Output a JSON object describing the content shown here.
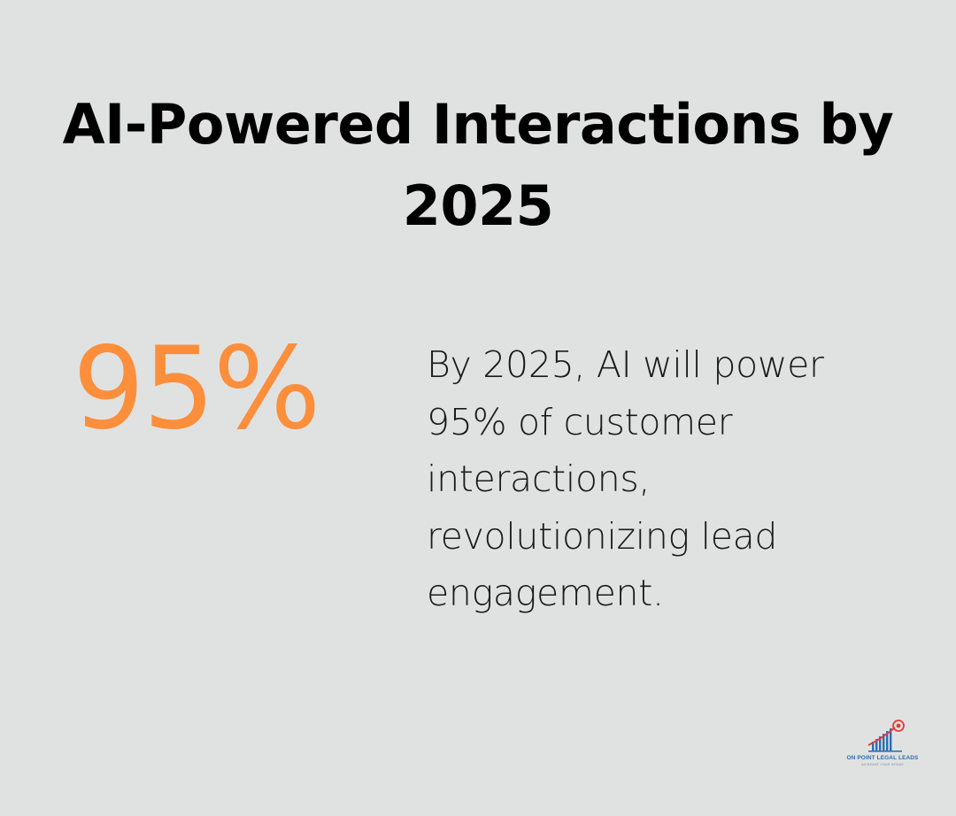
{
  "title": "AI-Powered Interactions by 2025",
  "stat": {
    "value": "95%",
    "description": "By 2025, AI will power 95% of customer interactions, revolutionizing lead engagement."
  },
  "logo": {
    "name": "ON POINT LEGAL LEADS",
    "tagline": "INCREASE YOUR INTAKE"
  },
  "colors": {
    "background": "#e0e2e1",
    "accent": "#fc8e3c",
    "title": "#000000",
    "body_text": "#1a1a1a",
    "logo_blue": "#2a6fb6",
    "logo_red": "#e23b3b"
  }
}
